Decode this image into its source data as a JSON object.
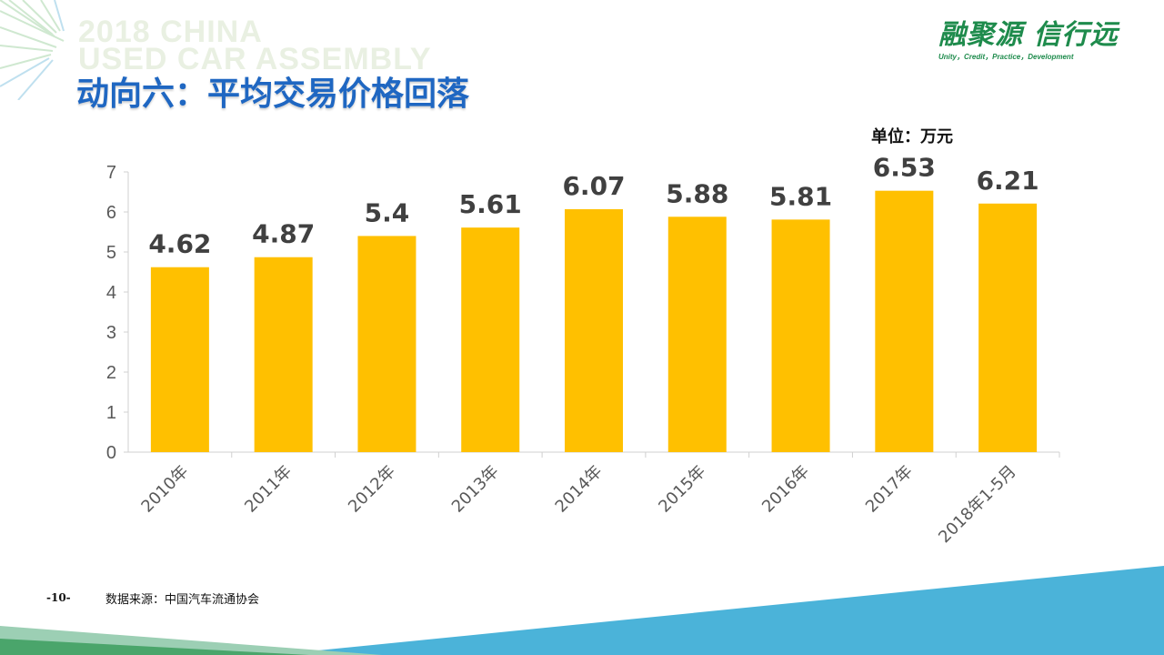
{
  "watermark": {
    "line1": "2018 CHINA",
    "line2": "USED CAR ASSEMBLY"
  },
  "page_title": "动向六：平均交易价格回落",
  "logo": {
    "cn": "融聚源 信行远",
    "en": "Unity，Credit，Practice，Development"
  },
  "unit_label": "单位：万元",
  "footer": {
    "page_number": "-10-",
    "source": "数据来源：中国汽车流通协会"
  },
  "colors": {
    "bar": "#FFC000",
    "title": "#1F67C2",
    "logo": "#1E8B4C"
  },
  "chart_data": {
    "type": "bar",
    "categories": [
      "2010年",
      "2011年",
      "2012年",
      "2013年",
      "2014年",
      "2015年",
      "2016年",
      "2017年",
      "2018年1-5月"
    ],
    "values": [
      4.62,
      4.87,
      5.4,
      5.61,
      6.07,
      5.88,
      5.81,
      6.53,
      6.21
    ],
    "data_labels": [
      "4.62",
      "4.87",
      "5.4",
      "5.61",
      "6.07",
      "5.88",
      "5.81",
      "6.53",
      "6.21"
    ],
    "ylim": [
      0,
      7
    ],
    "yticks": [
      0,
      1,
      2,
      3,
      4,
      5,
      6,
      7
    ],
    "grid": false,
    "legend": "none"
  }
}
